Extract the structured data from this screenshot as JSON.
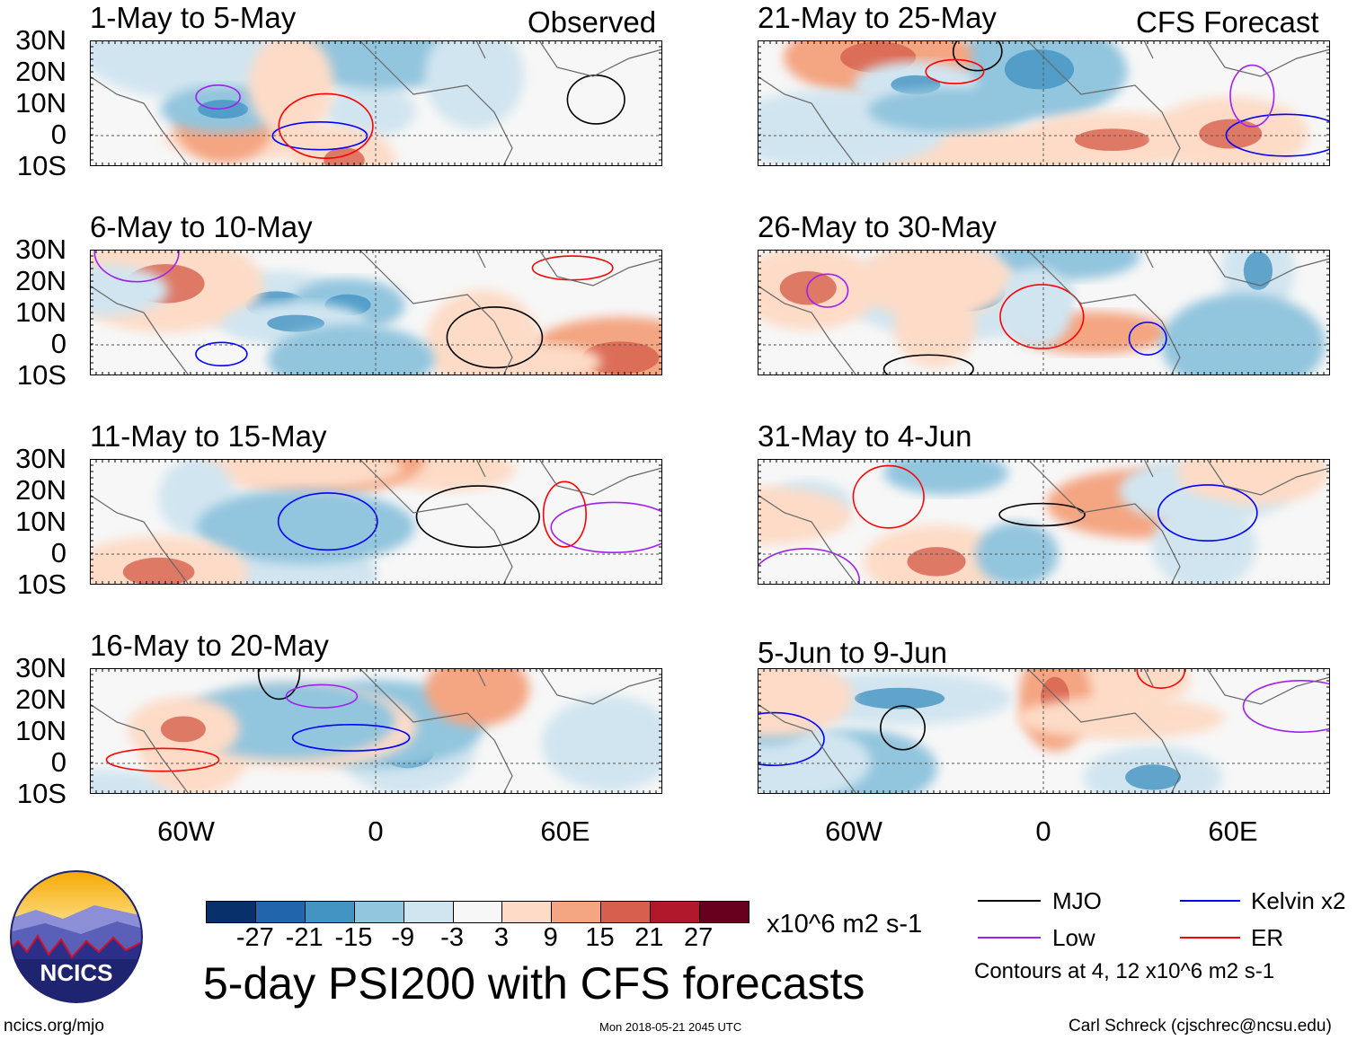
{
  "title": "5-day PSI200 with CFS forecasts",
  "left_header": "Observed",
  "right_header": "CFS Forecast",
  "footer": {
    "left": "ncics.org/mjo",
    "center": "Mon 2018-05-21 2045 UTC",
    "right": "Carl Schreck (cjschrec@ncsu.edu)"
  },
  "logo_text": "NCICS",
  "colorbar": {
    "units": "x10^6 m2 s-1",
    "ticks": [
      "-27",
      "-21",
      "-15",
      "-9",
      "-3",
      "3",
      "9",
      "15",
      "21",
      "27"
    ],
    "colors": [
      "#08306b",
      "#2166ac",
      "#4393c3",
      "#92c5de",
      "#d1e5f0",
      "#f7f7f7",
      "#fddbc7",
      "#f4a582",
      "#d6604d",
      "#b2182b",
      "#67001f"
    ]
  },
  "legend": {
    "items": [
      {
        "label": "MJO",
        "color": "#000000"
      },
      {
        "label": "Kelvin x2",
        "color": "#0000ff"
      },
      {
        "label": "Low",
        "color": "#a020f0"
      },
      {
        "label": "ER",
        "color": "#ff0000"
      }
    ],
    "note": "Contours at 4, 12 x10^6 m2 s-1"
  },
  "chart_data": {
    "type": "heatmap",
    "variable": "PSI200 anomaly",
    "lat_ticks": [
      "30N",
      "20N",
      "10N",
      "0",
      "10S"
    ],
    "lon_ticks": [
      "60W",
      "0",
      "60E"
    ],
    "panels": [
      {
        "title": "1-May to 5-May",
        "kind": "Observed"
      },
      {
        "title": "6-May to 10-May",
        "kind": "Observed"
      },
      {
        "title": "11-May to 15-May",
        "kind": "Observed"
      },
      {
        "title": "16-May to 20-May",
        "kind": "Observed"
      },
      {
        "title": "21-May to 25-May",
        "kind": "CFS Forecast"
      },
      {
        "title": "26-May to 30-May",
        "kind": "CFS Forecast"
      },
      {
        "title": "31-May to 4-Jun",
        "kind": "CFS Forecast"
      },
      {
        "title": "5-Jun to 9-Jun",
        "kind": "CFS Forecast"
      }
    ]
  }
}
